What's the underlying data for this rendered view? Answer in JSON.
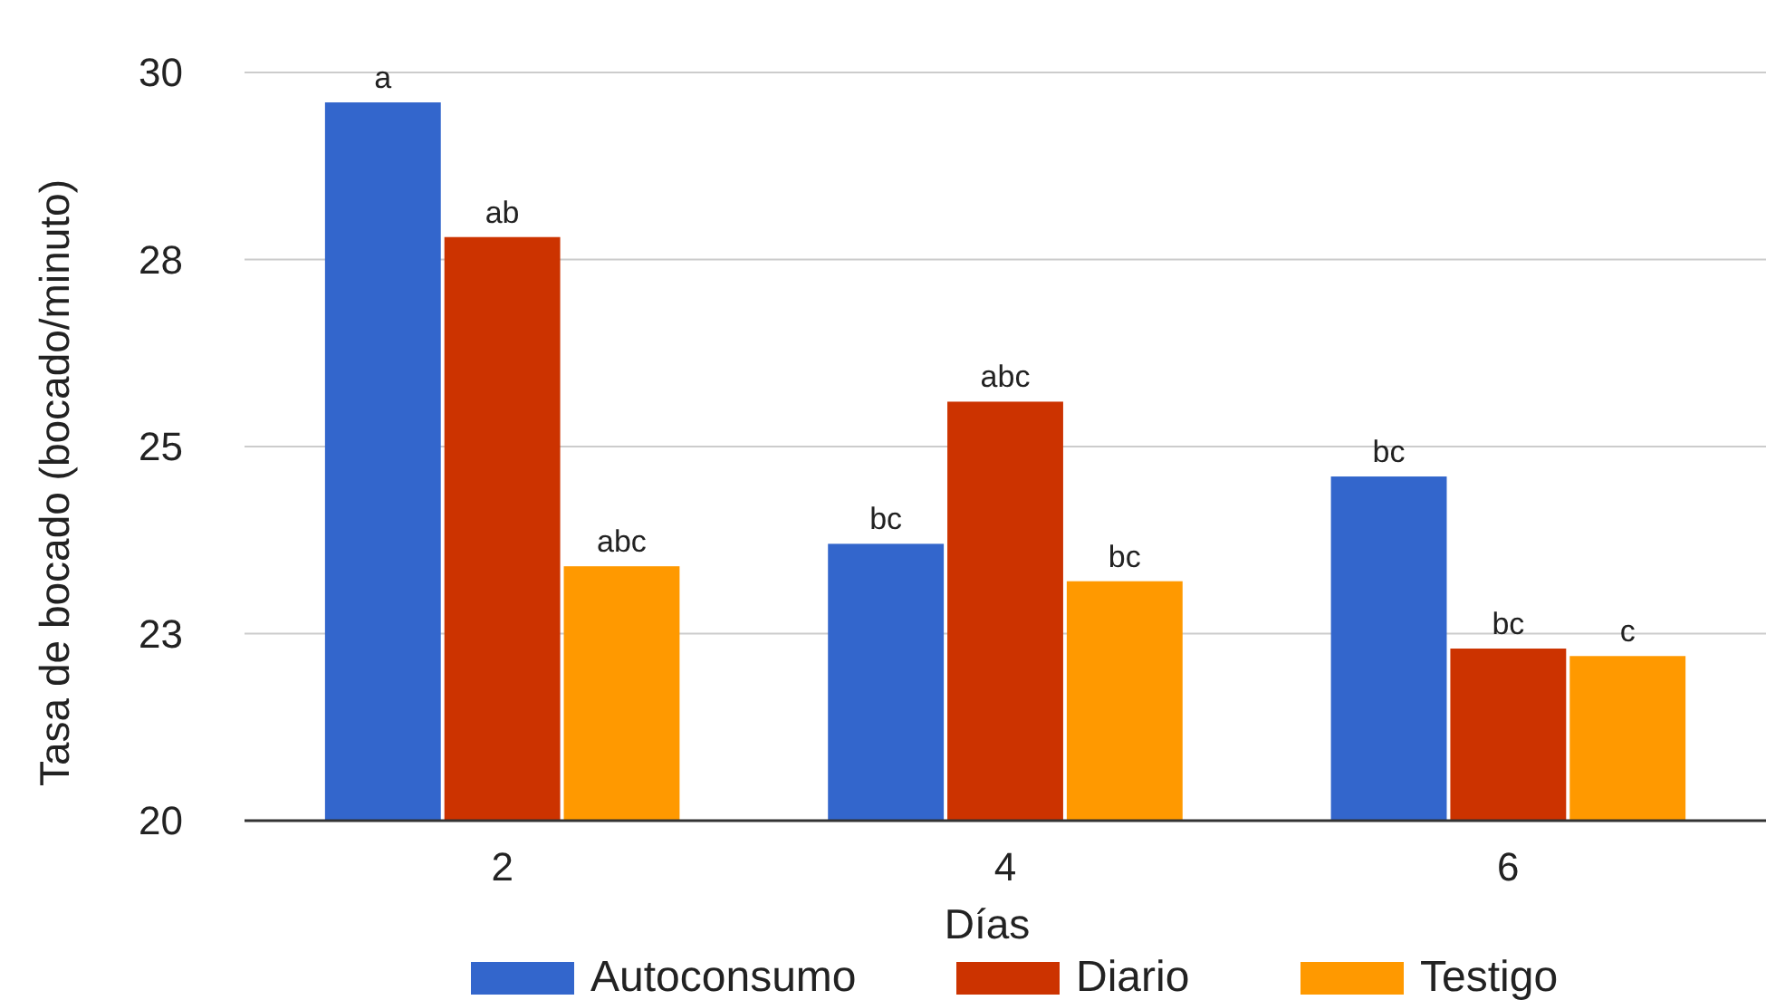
{
  "chart_data": {
    "type": "bar",
    "xlabel": "Días",
    "ylabel": "Tasa de bocado (bocado/minuto)",
    "categories": [
      "2",
      "4",
      "6"
    ],
    "series": [
      {
        "name": "Autoconsumo",
        "color": "#3366cc",
        "values": [
          29.6,
          23.7,
          24.6
        ]
      },
      {
        "name": "Diario",
        "color": "#cc3300",
        "values": [
          27.8,
          25.6,
          22.3
        ]
      },
      {
        "name": "Testigo",
        "color": "#ff9900",
        "values": [
          23.4,
          23.2,
          22.2
        ]
      }
    ],
    "ylim": [
      20,
      30
    ],
    "yticks": [
      20,
      {
        "value": 22.5,
        "label": "23"
      },
      25,
      {
        "value": 27.5,
        "label": "28"
      },
      30
    ],
    "grid": "y",
    "legend": "bottom",
    "annotations": [
      "a",
      "ab",
      "abc",
      "bc",
      "abc",
      "bc",
      "bc",
      "bc",
      "c"
    ]
  }
}
